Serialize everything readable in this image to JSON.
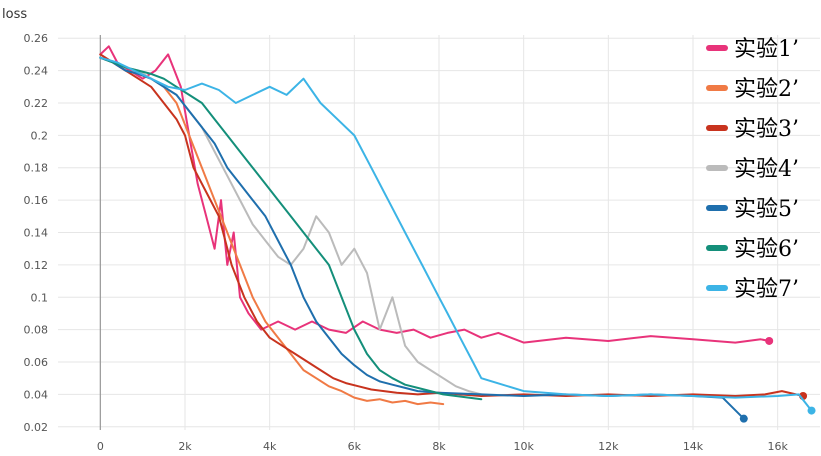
{
  "chart_data": {
    "type": "line",
    "title": "",
    "xlabel": "",
    "ylabel": "loss",
    "xlim": [
      -1000,
      17000
    ],
    "ylim": [
      0.018,
      0.262
    ],
    "x_ticks": [
      0,
      2000,
      4000,
      6000,
      8000,
      10000,
      12000,
      14000,
      16000
    ],
    "x_tick_labels": [
      "0",
      "2k",
      "4k",
      "6k",
      "8k",
      "10k",
      "12k",
      "14k",
      "16k"
    ],
    "y_ticks": [
      0.02,
      0.04,
      0.06,
      0.08,
      0.1,
      0.12,
      0.14,
      0.16,
      0.18,
      0.2,
      0.22,
      0.24,
      0.26
    ],
    "y_tick_labels": [
      "0.02",
      "0.04",
      "0.06",
      "0.08",
      "0.1",
      "0.12",
      "0.14",
      "0.16",
      "0.18",
      "0.2",
      "0.22",
      "0.24",
      "0.26"
    ],
    "grid": true,
    "legend_position": "right",
    "series": [
      {
        "name": "实验1’",
        "color": "#e8337a",
        "end_marker": true,
        "x": [
          0,
          200,
          400,
          700,
          1000,
          1300,
          1600,
          1900,
          2100,
          2300,
          2500,
          2700,
          2850,
          3000,
          3150,
          3300,
          3500,
          3800,
          4200,
          4600,
          5000,
          5400,
          5800,
          6200,
          6600,
          7000,
          7400,
          7800,
          8200,
          8600,
          9000,
          9400,
          10000,
          11000,
          12000,
          13000,
          14000,
          15000,
          15600,
          15800
        ],
        "y": [
          0.25,
          0.255,
          0.245,
          0.24,
          0.235,
          0.24,
          0.25,
          0.23,
          0.2,
          0.17,
          0.15,
          0.13,
          0.16,
          0.12,
          0.14,
          0.1,
          0.09,
          0.08,
          0.085,
          0.08,
          0.085,
          0.08,
          0.078,
          0.085,
          0.08,
          0.078,
          0.08,
          0.075,
          0.078,
          0.08,
          0.075,
          0.078,
          0.072,
          0.075,
          0.073,
          0.076,
          0.074,
          0.072,
          0.074,
          0.073
        ]
      },
      {
        "name": "实验2’",
        "color": "#f07a45",
        "end_marker": false,
        "x": [
          0,
          300,
          600,
          900,
          1200,
          1500,
          1800,
          2100,
          2400,
          2700,
          3000,
          3300,
          3600,
          3900,
          4200,
          4500,
          4800,
          5100,
          5400,
          5700,
          6000,
          6300,
          6600,
          6900,
          7200,
          7500,
          7800,
          8100
        ],
        "y": [
          0.248,
          0.245,
          0.24,
          0.238,
          0.235,
          0.23,
          0.22,
          0.2,
          0.18,
          0.16,
          0.14,
          0.12,
          0.1,
          0.085,
          0.075,
          0.065,
          0.055,
          0.05,
          0.045,
          0.042,
          0.038,
          0.036,
          0.037,
          0.035,
          0.036,
          0.034,
          0.035,
          0.034
        ]
      },
      {
        "name": "实验3’",
        "color": "#c8331e",
        "end_marker": true,
        "x": [
          0,
          300,
          600,
          900,
          1200,
          1500,
          1800,
          2000,
          2200,
          2500,
          2800,
          3100,
          3400,
          3700,
          4000,
          4300,
          4600,
          4900,
          5200,
          5500,
          5800,
          6100,
          6400,
          6700,
          7000,
          7500,
          8000,
          9000,
          10000,
          11000,
          12000,
          13000,
          14000,
          15000,
          15700,
          16100,
          16600
        ],
        "y": [
          0.25,
          0.245,
          0.24,
          0.235,
          0.23,
          0.22,
          0.21,
          0.2,
          0.18,
          0.165,
          0.15,
          0.12,
          0.1,
          0.085,
          0.075,
          0.07,
          0.065,
          0.06,
          0.055,
          0.05,
          0.047,
          0.045,
          0.043,
          0.042,
          0.041,
          0.04,
          0.041,
          0.039,
          0.04,
          0.039,
          0.04,
          0.039,
          0.04,
          0.039,
          0.04,
          0.042,
          0.039
        ]
      },
      {
        "name": "实验4’",
        "color": "#bbbbbb",
        "end_marker": false,
        "x": [
          0,
          300,
          600,
          900,
          1200,
          1500,
          1800,
          2100,
          2400,
          2700,
          3000,
          3300,
          3600,
          3900,
          4200,
          4500,
          4800,
          5100,
          5400,
          5700,
          6000,
          6300,
          6600,
          6900,
          7200,
          7500,
          7800,
          8100,
          8400,
          8700,
          9000
        ],
        "y": [
          0.248,
          0.245,
          0.242,
          0.24,
          0.235,
          0.23,
          0.225,
          0.215,
          0.205,
          0.19,
          0.175,
          0.16,
          0.145,
          0.135,
          0.125,
          0.12,
          0.13,
          0.15,
          0.14,
          0.12,
          0.13,
          0.115,
          0.08,
          0.1,
          0.07,
          0.06,
          0.055,
          0.05,
          0.045,
          0.042,
          0.04
        ]
      },
      {
        "name": "实验5’",
        "color": "#1f6fad",
        "end_marker": true,
        "x": [
          0,
          300,
          600,
          900,
          1200,
          1500,
          1800,
          2100,
          2400,
          2700,
          3000,
          3300,
          3600,
          3900,
          4200,
          4500,
          4800,
          5100,
          5400,
          5700,
          6000,
          6300,
          6600,
          6900,
          7200,
          7500,
          8000,
          9000,
          10000,
          11000,
          12000,
          13000,
          14000,
          14700,
          15200
        ],
        "y": [
          0.248,
          0.245,
          0.24,
          0.238,
          0.235,
          0.23,
          0.225,
          0.215,
          0.205,
          0.195,
          0.18,
          0.17,
          0.16,
          0.15,
          0.135,
          0.12,
          0.1,
          0.085,
          0.075,
          0.065,
          0.058,
          0.052,
          0.048,
          0.046,
          0.044,
          0.042,
          0.041,
          0.04,
          0.039,
          0.04,
          0.039,
          0.04,
          0.039,
          0.038,
          0.025
        ]
      },
      {
        "name": "实验6’",
        "color": "#148f7a",
        "end_marker": false,
        "x": [
          0,
          300,
          600,
          900,
          1200,
          1500,
          1800,
          2100,
          2400,
          2700,
          3000,
          3300,
          3600,
          3900,
          4200,
          4500,
          4800,
          5100,
          5400,
          5700,
          6000,
          6300,
          6600,
          6900,
          7200,
          7500,
          7800,
          8100,
          8400,
          8700,
          9000
        ],
        "y": [
          0.248,
          0.245,
          0.242,
          0.24,
          0.238,
          0.235,
          0.23,
          0.225,
          0.22,
          0.21,
          0.2,
          0.19,
          0.18,
          0.17,
          0.16,
          0.15,
          0.14,
          0.13,
          0.12,
          0.1,
          0.08,
          0.065,
          0.055,
          0.05,
          0.046,
          0.044,
          0.042,
          0.04,
          0.039,
          0.038,
          0.037
        ]
      },
      {
        "name": "实验7’",
        "color": "#3cb4e6",
        "end_marker": true,
        "x": [
          0,
          400,
          800,
          1200,
          1600,
          2000,
          2400,
          2800,
          3200,
          3600,
          4000,
          4400,
          4800,
          5200,
          5600,
          6000,
          6400,
          6800,
          7200,
          7600,
          8000,
          8200,
          8400,
          8600,
          8800,
          9000,
          10000,
          11000,
          12000,
          13000,
          14000,
          15000,
          16000,
          16500,
          16800
        ],
        "y": [
          0.248,
          0.245,
          0.24,
          0.235,
          0.23,
          0.228,
          0.232,
          0.228,
          0.22,
          0.225,
          0.23,
          0.225,
          0.235,
          0.22,
          0.21,
          0.2,
          0.18,
          0.16,
          0.14,
          0.12,
          0.1,
          0.09,
          0.08,
          0.07,
          0.06,
          0.05,
          0.042,
          0.04,
          0.039,
          0.04,
          0.039,
          0.038,
          0.039,
          0.04,
          0.03
        ]
      }
    ]
  }
}
